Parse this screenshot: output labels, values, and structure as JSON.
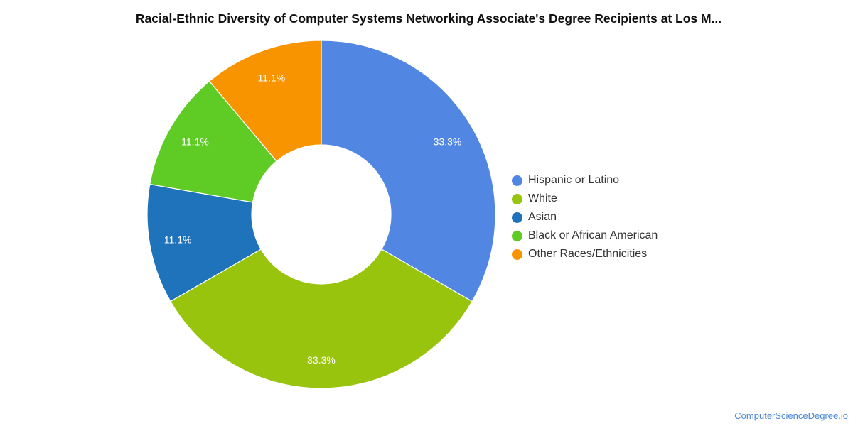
{
  "chart_data": {
    "type": "pie",
    "title": "Racial-Ethnic Diversity of Computer Systems Networking Associate's Degree Recipients at Los M...",
    "donut": true,
    "categories": [
      "Hispanic or Latino",
      "White",
      "Asian",
      "Black or African American",
      "Other Races/Ethnicities"
    ],
    "values": [
      33.3,
      33.3,
      11.1,
      11.1,
      11.1
    ],
    "data_labels": [
      "33.3%",
      "33.3%",
      "11.1%",
      "11.1%",
      "11.1%"
    ],
    "colors": [
      "#5286e3",
      "#98c40e",
      "#1f73bb",
      "#5fcc26",
      "#f89400"
    ],
    "legend_position": "right"
  },
  "credit": "ComputerScienceDegree.io"
}
